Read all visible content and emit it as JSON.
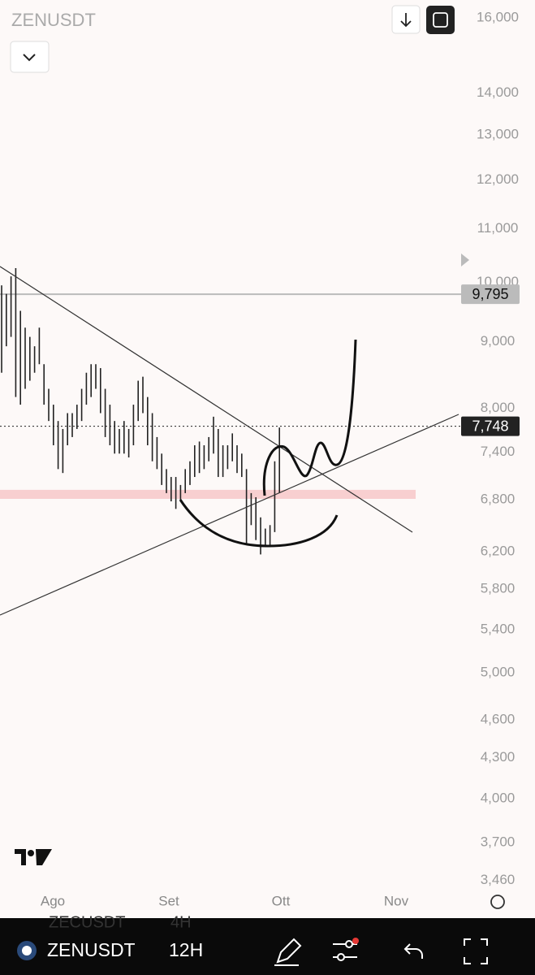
{
  "chart_data": {
    "type": "ohlc",
    "title": "ZENUSDT",
    "log_scale": true,
    "grid": false,
    "color": "#222222",
    "ylim": [
      3402,
      16516
    ],
    "yticks": [
      {
        "value": 16000,
        "label": "16,000"
      },
      {
        "value": 14000,
        "label": "14,000"
      },
      {
        "value": 13000,
        "label": "13,000"
      },
      {
        "value": 12000,
        "label": "12,000"
      },
      {
        "value": 11000,
        "label": "11,000"
      },
      {
        "value": 10000,
        "label": "10,000"
      },
      {
        "value": 9000,
        "label": "9,000"
      },
      {
        "value": 8000,
        "label": "8,000"
      },
      {
        "value": 7400,
        "label": "7,400"
      },
      {
        "value": 6800,
        "label": "6,800"
      },
      {
        "value": 6200,
        "label": "6,200"
      },
      {
        "value": 5800,
        "label": "5,800"
      },
      {
        "value": 5400,
        "label": "5,400"
      },
      {
        "value": 5000,
        "label": "5,000"
      },
      {
        "value": 4600,
        "label": "4,600"
      },
      {
        "value": 4300,
        "label": "4,300"
      },
      {
        "value": 4000,
        "label": "4,000"
      },
      {
        "value": 3700,
        "label": "3,700"
      },
      {
        "value": 3460,
        "label": "3,460"
      }
    ],
    "categories": [
      "Ago",
      "Set",
      "Ott",
      "Nov"
    ],
    "price_lines": [
      {
        "value": 9795,
        "label": "9,795",
        "color": "#bbbbbb"
      },
      {
        "value": 7748,
        "label": "7,748",
        "color": "#222222"
      }
    ],
    "zone": [
      6810,
      6920
    ],
    "zone_color": "#f8cfd0",
    "bars": [
      {
        "high": 9950,
        "low": 8520
      },
      {
        "high": 9800,
        "low": 8930
      },
      {
        "high": 10110,
        "low": 9080
      },
      {
        "high": 10260,
        "low": 8160
      },
      {
        "high": 9510,
        "low": 8050
      },
      {
        "high": 9230,
        "low": 8280
      },
      {
        "high": 9080,
        "low": 8400
      },
      {
        "high": 8930,
        "low": 8520
      },
      {
        "high": 9230,
        "low": 8650
      },
      {
        "high": 8650,
        "low": 8050
      },
      {
        "high": 8280,
        "low": 7820
      },
      {
        "high": 8050,
        "low": 7490
      },
      {
        "high": 7820,
        "low": 7180
      },
      {
        "high": 7710,
        "low": 7130
      },
      {
        "high": 7930,
        "low": 7490
      },
      {
        "high": 7930,
        "low": 7600
      },
      {
        "high": 8050,
        "low": 7710
      },
      {
        "high": 8280,
        "low": 7820
      },
      {
        "high": 8520,
        "low": 8050
      },
      {
        "high": 8650,
        "low": 8160
      },
      {
        "high": 8650,
        "low": 8280
      },
      {
        "high": 8590,
        "low": 7930
      },
      {
        "high": 8280,
        "low": 7600
      },
      {
        "high": 8050,
        "low": 7490
      },
      {
        "high": 7820,
        "low": 7380
      },
      {
        "high": 7710,
        "low": 7380
      },
      {
        "high": 7820,
        "low": 7380
      },
      {
        "high": 7710,
        "low": 7330
      },
      {
        "high": 8050,
        "low": 7490
      },
      {
        "high": 8400,
        "low": 7820
      },
      {
        "high": 8460,
        "low": 7930
      },
      {
        "high": 8160,
        "low": 7490
      },
      {
        "high": 7930,
        "low": 7280
      },
      {
        "high": 7600,
        "low": 7180
      },
      {
        "high": 7380,
        "low": 6980
      },
      {
        "high": 7180,
        "low": 6880
      },
      {
        "high": 7080,
        "low": 6780
      },
      {
        "high": 7080,
        "low": 6690
      },
      {
        "high": 6980,
        "low": 6780
      },
      {
        "high": 7180,
        "low": 6880
      },
      {
        "high": 7280,
        "low": 6980
      },
      {
        "high": 7490,
        "low": 7080
      },
      {
        "high": 7540,
        "low": 7130
      },
      {
        "high": 7490,
        "low": 7180
      },
      {
        "high": 7600,
        "low": 7280
      },
      {
        "high": 7880,
        "low": 7380
      },
      {
        "high": 7710,
        "low": 7080
      },
      {
        "high": 7490,
        "low": 7080
      },
      {
        "high": 7490,
        "low": 7180
      },
      {
        "high": 7650,
        "low": 7280
      },
      {
        "high": 7490,
        "low": 7130
      },
      {
        "high": 7380,
        "low": 7080
      },
      {
        "high": 7180,
        "low": 6290
      },
      {
        "high": 6880,
        "low": 6500
      },
      {
        "high": 6830,
        "low": 6330
      },
      {
        "high": 6590,
        "low": 6170
      },
      {
        "high": 6460,
        "low": 6250
      },
      {
        "high": 6500,
        "low": 6250
      },
      {
        "high": 7280,
        "low": 6420
      },
      {
        "high": 7730,
        "low": 6880
      }
    ],
    "toolbar": {
      "symbol": "ZENUSDT",
      "interval": "12H",
      "ghost_symbol": "ZECUSDT",
      "ghost_interval": "4H"
    }
  }
}
